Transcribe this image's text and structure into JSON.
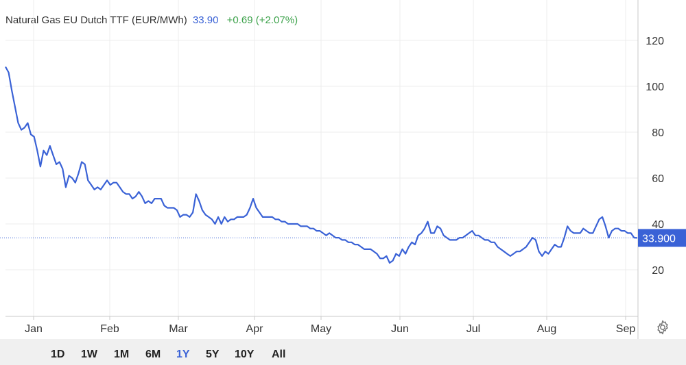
{
  "header": {
    "title": "Natural Gas EU Dutch TTF (EUR/MWh)",
    "last": "33.90",
    "change": "+0.69 (+2.07%)",
    "change_color": "#3fa34d",
    "last_color": "#3a62d6"
  },
  "current_price_label": "33.900",
  "range_buttons": [
    {
      "label": "1D",
      "active": false
    },
    {
      "label": "1W",
      "active": false
    },
    {
      "label": "1M",
      "active": false
    },
    {
      "label": "6M",
      "active": false
    },
    {
      "label": "1Y",
      "active": true
    },
    {
      "label": "5Y",
      "active": false
    },
    {
      "label": "10Y",
      "active": false
    },
    {
      "label": "All",
      "active": false
    }
  ],
  "settings_icon": "gear-icon",
  "chart_data": {
    "type": "line",
    "title": "Natural Gas EU Dutch TTF (EUR/MWh)",
    "xlabel": "",
    "ylabel": "",
    "ylim": [
      0,
      130
    ],
    "grid": true,
    "y_axis_side": "right",
    "y_ticks": [
      20,
      40,
      60,
      80,
      100,
      120
    ],
    "x_ticks": [
      "Jan",
      "Feb",
      "Mar",
      "Apr",
      "May",
      "Jun",
      "Jul",
      "Aug",
      "Sep"
    ],
    "line_color": "#3a62d6",
    "current_value": 33.9,
    "series": [
      {
        "values": [
          108.5,
          106,
          98,
          91,
          84,
          81,
          82,
          84,
          79,
          78,
          72,
          65,
          72,
          70,
          74,
          70,
          66,
          67,
          64,
          56,
          61,
          60,
          58,
          62,
          67,
          66,
          59,
          57,
          55,
          56,
          55,
          57,
          59,
          57,
          58,
          58,
          56,
          54,
          53,
          53,
          51,
          52,
          54,
          52,
          49,
          50,
          49,
          51,
          51,
          51,
          48,
          47,
          47,
          47,
          46,
          43,
          44,
          44,
          43,
          45,
          53,
          50,
          46,
          44,
          43,
          42,
          40,
          43,
          40,
          43,
          41,
          42,
          42,
          43,
          43,
          43,
          44,
          47,
          51,
          47,
          45,
          43,
          43,
          43,
          43,
          42,
          42,
          41,
          41,
          40,
          40,
          40,
          40,
          39,
          39,
          39,
          38,
          38,
          37,
          37,
          36,
          35,
          36,
          35,
          34,
          34,
          33,
          33,
          32,
          32,
          31,
          31,
          30,
          29,
          29,
          29,
          28,
          27,
          25,
          25,
          26,
          23,
          24,
          27,
          26,
          29,
          27,
          30,
          32,
          31,
          35,
          36,
          38,
          41,
          36,
          36,
          39,
          38,
          35,
          34,
          33,
          33,
          33,
          34,
          34,
          35,
          36,
          37,
          35,
          35,
          34,
          33,
          33,
          32,
          32,
          30,
          29,
          28,
          27,
          26,
          27,
          28,
          28,
          29,
          30,
          32,
          34,
          33,
          28,
          26,
          28,
          27,
          29,
          31,
          30,
          30,
          34,
          39,
          37,
          36,
          36,
          36,
          38,
          37,
          36,
          36,
          39,
          42,
          43,
          39,
          34,
          37,
          38,
          38,
          37,
          37,
          36,
          36,
          34,
          33.9
        ]
      }
    ]
  }
}
